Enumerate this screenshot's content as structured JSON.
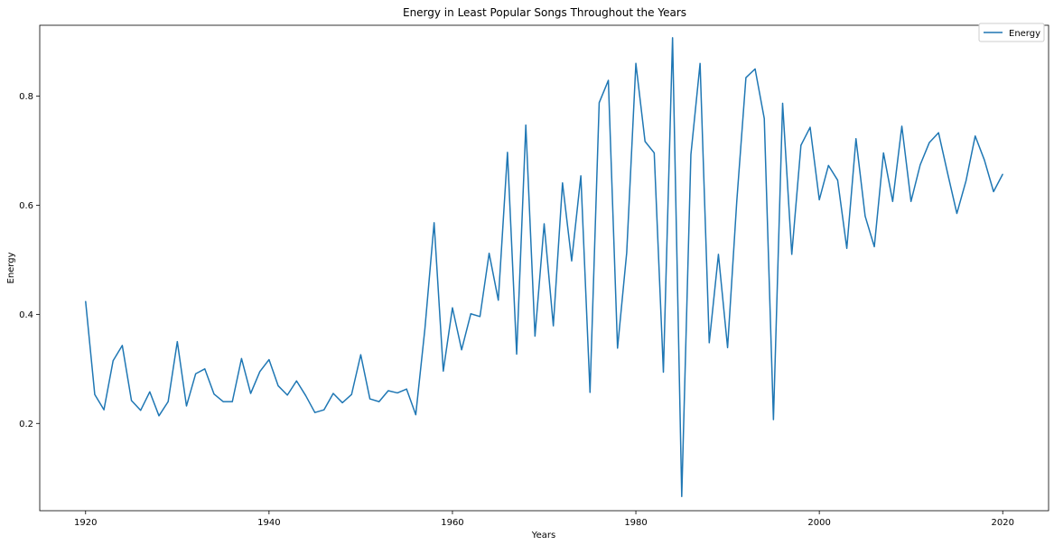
{
  "chart_data": {
    "type": "line",
    "title": "Energy in Least Popular Songs Throughout the Years",
    "xlabel": "Years",
    "ylabel": "Energy",
    "xlim": [
      1915,
      2025
    ],
    "ylim": [
      0.04,
      0.93
    ],
    "xticks": [
      1920,
      1940,
      1960,
      1980,
      2000,
      2020
    ],
    "yticks": [
      0.2,
      0.4,
      0.6,
      0.8
    ],
    "grid": false,
    "legend_position": "top-right",
    "series_color": "#1f77b4",
    "series": [
      {
        "name": "Energy",
        "x": [
          1920,
          1921,
          1922,
          1923,
          1924,
          1925,
          1926,
          1927,
          1928,
          1929,
          1930,
          1931,
          1932,
          1933,
          1934,
          1935,
          1936,
          1937,
          1938,
          1939,
          1940,
          1941,
          1942,
          1943,
          1944,
          1945,
          1946,
          1947,
          1948,
          1949,
          1950,
          1951,
          1952,
          1953,
          1954,
          1955,
          1956,
          1957,
          1958,
          1959,
          1960,
          1961,
          1962,
          1963,
          1964,
          1965,
          1966,
          1967,
          1968,
          1969,
          1970,
          1971,
          1972,
          1973,
          1974,
          1975,
          1976,
          1977,
          1978,
          1979,
          1980,
          1981,
          1982,
          1983,
          1984,
          1985,
          1986,
          1987,
          1988,
          1989,
          1990,
          1991,
          1992,
          1993,
          1994,
          1995,
          1996,
          1997,
          1998,
          1999,
          2000,
          2001,
          2002,
          2003,
          2004,
          2005,
          2006,
          2007,
          2008,
          2009,
          2010,
          2011,
          2012,
          2013,
          2014,
          2015,
          2016,
          2017,
          2018,
          2019,
          2020
        ],
        "values": [
          0.424,
          0.253,
          0.225,
          0.315,
          0.343,
          0.242,
          0.224,
          0.258,
          0.214,
          0.24,
          0.35,
          0.232,
          0.291,
          0.3,
          0.254,
          0.24,
          0.24,
          0.319,
          0.255,
          0.295,
          0.317,
          0.269,
          0.252,
          0.278,
          0.251,
          0.22,
          0.225,
          0.255,
          0.238,
          0.253,
          0.326,
          0.245,
          0.24,
          0.26,
          0.256,
          0.263,
          0.216,
          0.374,
          0.568,
          0.296,
          0.412,
          0.335,
          0.401,
          0.396,
          0.512,
          0.426,
          0.697,
          0.327,
          0.747,
          0.36,
          0.566,
          0.379,
          0.641,
          0.498,
          0.654,
          0.257,
          0.788,
          0.829,
          0.338,
          0.513,
          0.86,
          0.717,
          0.696,
          0.294,
          0.907,
          0.066,
          0.693,
          0.86,
          0.348,
          0.51,
          0.339,
          0.607,
          0.834,
          0.85,
          0.759,
          0.207,
          0.787,
          0.51,
          0.71,
          0.743,
          0.61,
          0.673,
          0.646,
          0.521,
          0.722,
          0.58,
          0.524,
          0.696,
          0.607,
          0.745,
          0.607,
          0.674,
          0.715,
          0.733,
          0.658,
          0.585,
          0.645,
          0.727,
          0.683,
          0.625,
          0.657
        ]
      }
    ]
  }
}
